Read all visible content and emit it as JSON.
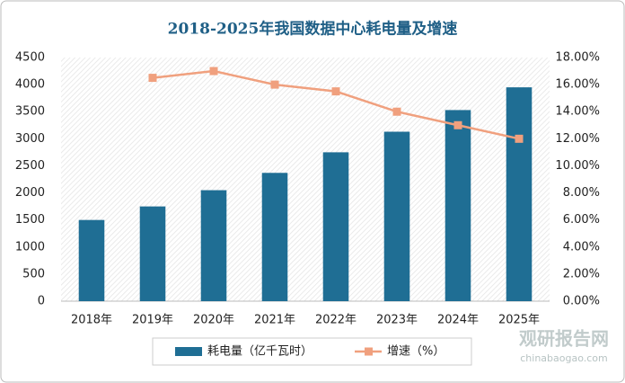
{
  "chart_data": {
    "type": "bar",
    "title": "2018-2025年我国数据中心耗电量及增速",
    "categories": [
      "2018年",
      "2019年",
      "2020年",
      "2021年",
      "2022年",
      "2023年",
      "2024年",
      "2025年"
    ],
    "series": [
      {
        "name": "耗电量（亿千瓦时）",
        "type": "bar",
        "color": "#1f6e94",
        "values": [
          1500,
          1750,
          2050,
          2370,
          2750,
          3130,
          3530,
          3950
        ]
      },
      {
        "name": "增速（%）",
        "type": "line",
        "axis": "y2",
        "color": "#f0a07e",
        "values": [
          null,
          16.5,
          17.0,
          16.0,
          15.5,
          14.0,
          13.0,
          12.0
        ]
      }
    ],
    "ylim": [
      0,
      4500
    ],
    "yticks": [
      0,
      500,
      1000,
      1500,
      2000,
      2500,
      3000,
      3500,
      4000,
      4500
    ],
    "y2lim": [
      0,
      18
    ],
    "y2ticks": [
      {
        "value": 0,
        "label": "0.00%"
      },
      {
        "value": 2,
        "label": "2.00%"
      },
      {
        "value": 4,
        "label": "4.00%"
      },
      {
        "value": 6,
        "label": "6.00%"
      },
      {
        "value": 8,
        "label": "8.00%"
      },
      {
        "value": 10,
        "label": "10.00%"
      },
      {
        "value": 12,
        "label": "12.00%"
      },
      {
        "value": 14,
        "label": "14.00%"
      },
      {
        "value": 16,
        "label": "16.00%"
      },
      {
        "value": 18,
        "label": "18.00%"
      }
    ],
    "legend": "bottom",
    "watermark": {
      "name": "观研报告网",
      "url": "chinabaogao.com"
    }
  }
}
